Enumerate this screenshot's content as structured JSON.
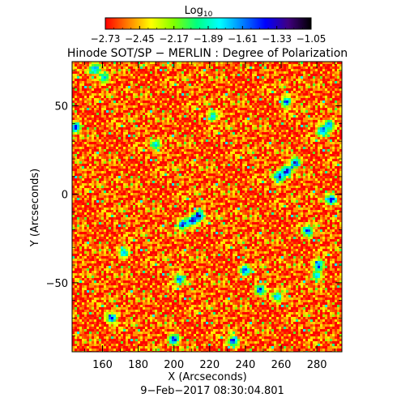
{
  "chart_data": {
    "type": "heatmap",
    "title": "Hinode SOT/SP − MERLIN : Degree of Polarization",
    "xlabel": "X (Arcseconds)",
    "ylabel": "Y (Arcseconds)",
    "date_label": "9−Feb−2017 08:30:04.801",
    "colorbar": {
      "label_main": "Log",
      "label_sub": "10",
      "range": [
        -2.73,
        -1.05
      ],
      "tick_values": [
        -2.73,
        -2.45,
        -2.17,
        -1.89,
        -1.61,
        -1.33,
        -1.05
      ],
      "tick_labels": [
        "−2.73",
        "−2.45",
        "−2.17",
        "−1.89",
        "−1.61",
        "−1.33",
        "−1.05"
      ],
      "colors": [
        "#ff0000",
        "#ff8000",
        "#ffff00",
        "#80ff00",
        "#00ff80",
        "#00ffff",
        "#0080ff",
        "#0000ff",
        "#400080",
        "#000000"
      ]
    },
    "x_ticks": [
      160,
      180,
      200,
      220,
      240,
      260,
      280
    ],
    "x_tick_labels": [
      "160",
      "180",
      "200",
      "220",
      "240",
      "260",
      "280"
    ],
    "y_ticks": [
      -50,
      0,
      50
    ],
    "y_tick_labels": [
      "−50",
      "0",
      "50"
    ],
    "xlim": [
      143,
      294
    ],
    "ylim": [
      -89,
      75
    ],
    "grid": false,
    "dominant_value": -2.6,
    "features": [
      {
        "x": 210,
        "y": -15,
        "value": -1.15
      },
      {
        "x": 214,
        "y": -12,
        "value": -1.1
      },
      {
        "x": 205,
        "y": -17,
        "value": -1.2
      },
      {
        "x": 263,
        "y": 13,
        "value": -1.1
      },
      {
        "x": 259,
        "y": 10,
        "value": -1.15
      },
      {
        "x": 268,
        "y": 18,
        "value": -1.2
      },
      {
        "x": 283,
        "y": 36,
        "value": -1.3
      },
      {
        "x": 287,
        "y": 39,
        "value": -1.4
      },
      {
        "x": 156,
        "y": 71,
        "value": -1.25
      },
      {
        "x": 161,
        "y": 66,
        "value": -1.6
      },
      {
        "x": 145,
        "y": 38,
        "value": -1.3
      },
      {
        "x": 288,
        "y": -3,
        "value": -1.2
      },
      {
        "x": 275,
        "y": -21,
        "value": -1.25
      },
      {
        "x": 281,
        "y": -40,
        "value": -1.2
      },
      {
        "x": 280,
        "y": -46,
        "value": -1.6
      },
      {
        "x": 240,
        "y": -43,
        "value": -1.3
      },
      {
        "x": 248,
        "y": -54,
        "value": -1.3
      },
      {
        "x": 258,
        "y": -58,
        "value": -1.5
      },
      {
        "x": 165,
        "y": -70,
        "value": -1.35
      },
      {
        "x": 200,
        "y": -82,
        "value": -1.2
      },
      {
        "x": 233,
        "y": -83,
        "value": -1.25
      },
      {
        "x": 263,
        "y": 52,
        "value": -1.4
      },
      {
        "x": 222,
        "y": 44,
        "value": -1.6
      },
      {
        "x": 190,
        "y": 28,
        "value": -1.6
      },
      {
        "x": 172,
        "y": -33,
        "value": -1.5
      },
      {
        "x": 203,
        "y": -48,
        "value": -1.4
      }
    ]
  }
}
